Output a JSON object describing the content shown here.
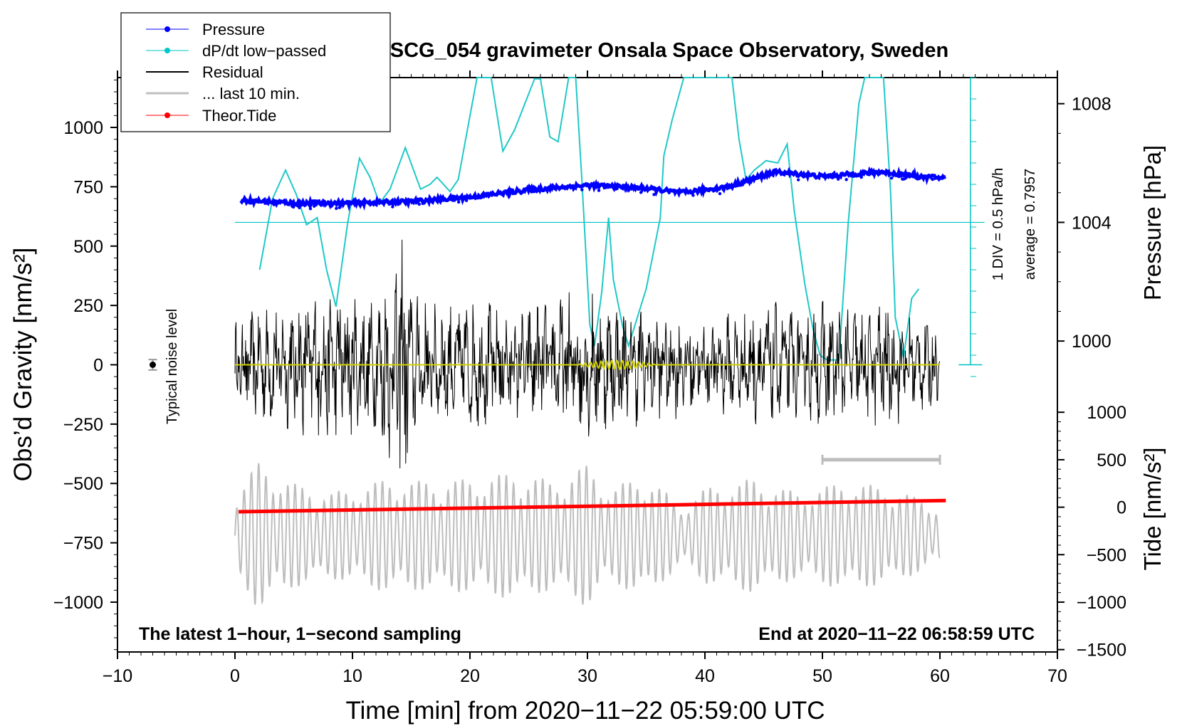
{
  "chart_data": {
    "type": "line",
    "title": "SCG_054 gravimeter Onsala Space Observatory, Sweden",
    "xlabel": "Time [min] from 2020−11−22 05:59:00 UTC",
    "ylabel_left": "Obs’d Gravity [nm/s²]",
    "ylabel_right_pressure": "Pressure [hPa]",
    "ylabel_right_tide": "Tide [nm/s²]",
    "xlim": [
      -10,
      70
    ],
    "ylim": [
      -1210,
      1210
    ],
    "x_ticks": [
      -10,
      0,
      10,
      20,
      30,
      40,
      50,
      60,
      70
    ],
    "x_tick_labels": [
      "−10",
      "0",
      "10",
      "20",
      "30",
      "40",
      "50",
      "60",
      "70"
    ],
    "y_ticks": [
      1000,
      750,
      500,
      250,
      0,
      -250,
      -500,
      -750,
      -1000
    ],
    "y_tick_labels": [
      "1000",
      "750",
      "500",
      "250",
      "0",
      "−250",
      "−500",
      "−750",
      "−1000"
    ],
    "pressure_axis": {
      "ticks": [
        1008,
        1004,
        1000
      ],
      "tick_labels": [
        "1008",
        "1004",
        "1000"
      ],
      "gravity_at_1004": 600,
      "gravity_per_hpa": 125
    },
    "tide_axis": {
      "ticks": [
        1000,
        500,
        0,
        -500,
        -1000,
        -1500
      ],
      "tick_labels": [
        "1000",
        "500",
        "0",
        "−500",
        "−1000",
        "−1500"
      ],
      "gravity_at_zero": -600,
      "gravity_per_unit": 0.4
    },
    "legend": {
      "position": "top-left",
      "entries": [
        {
          "label": "Pressure",
          "color": "#0000ff",
          "marker": "dot"
        },
        {
          "label": "dP/dt low−passed",
          "color": "#00c8c8",
          "marker": "dot"
        },
        {
          "label": "Residual",
          "color": "#000000",
          "marker": "line"
        },
        {
          "label": "... last 10 min.",
          "color": "#c0c0c0",
          "marker": "line"
        },
        {
          "label": "Theor.Tide",
          "color": "#ff0000",
          "marker": "dot"
        }
      ]
    },
    "annotations": {
      "noise_label": "Typical noise level",
      "noise_point": {
        "x": -7,
        "y": 0,
        "err": 22
      },
      "div_label": "1 DIV = 0.5 hPa/h",
      "avg_label": "average = 0.7957",
      "bottom_left": "The latest 1−hour, 1−second sampling",
      "bottom_right": "End at 2020−11−22 06:58:59 UTC",
      "last10_range": [
        50,
        60
      ],
      "last10_y": -400
    },
    "series": [
      {
        "name": "Pressure",
        "color": "#0000ff",
        "y_axis": "pressure_hpa",
        "points": [
          [
            0.5,
            1004.75
          ],
          [
            5,
            1004.65
          ],
          [
            10,
            1004.65
          ],
          [
            15,
            1004.7
          ],
          [
            20,
            1004.85
          ],
          [
            25,
            1005.1
          ],
          [
            30,
            1005.25
          ],
          [
            35,
            1005.15
          ],
          [
            38,
            1005.0
          ],
          [
            42,
            1005.2
          ],
          [
            46,
            1005.7
          ],
          [
            50,
            1005.55
          ],
          [
            55,
            1005.7
          ],
          [
            58,
            1005.55
          ],
          [
            60.5,
            1005.5
          ]
        ]
      },
      {
        "name": "dP/dt low-passed",
        "color": "#00c8c8",
        "y_axis": "gravity",
        "baseline": 600,
        "points": [
          [
            2.1,
            400
          ],
          [
            3.2,
            700
          ],
          [
            4.3,
            820
          ],
          [
            5.2,
            720
          ],
          [
            6.1,
            590
          ],
          [
            7,
            620
          ],
          [
            7.8,
            400
          ],
          [
            8.6,
            245
          ],
          [
            9.6,
            600
          ],
          [
            10.6,
            870
          ],
          [
            11.5,
            790
          ],
          [
            12.3,
            680
          ],
          [
            13.2,
            740
          ],
          [
            14.5,
            915
          ],
          [
            15.8,
            740
          ],
          [
            16.6,
            760
          ],
          [
            17.2,
            790
          ],
          [
            18.3,
            730
          ],
          [
            19,
            780
          ],
          [
            20.6,
            1210
          ],
          [
            21.8,
            1210
          ],
          [
            22.8,
            900
          ],
          [
            23.8,
            990
          ],
          [
            25.5,
            1205
          ],
          [
            26,
            1205
          ],
          [
            26.8,
            960
          ],
          [
            27.5,
            940
          ],
          [
            28.4,
            1210
          ],
          [
            29,
            1210
          ],
          [
            29.5,
            800
          ],
          [
            30.2,
            170
          ],
          [
            30.6,
            80
          ],
          [
            31.2,
            300
          ],
          [
            31.8,
            620
          ],
          [
            32.2,
            360
          ],
          [
            33,
            160
          ],
          [
            33.5,
            80
          ],
          [
            35,
            320
          ],
          [
            36.2,
            620
          ],
          [
            36.5,
            880
          ],
          [
            37.2,
            1030
          ],
          [
            38.2,
            1210
          ],
          [
            42.3,
            1210
          ],
          [
            42.9,
            950
          ],
          [
            43.5,
            780
          ],
          [
            44.2,
            820
          ],
          [
            45.2,
            860
          ],
          [
            46.2,
            850
          ],
          [
            47,
            930
          ],
          [
            47.6,
            650
          ],
          [
            48.5,
            340
          ],
          [
            49.2,
            150
          ],
          [
            49.8,
            40
          ],
          [
            50.4,
            20
          ],
          [
            51.4,
            20
          ],
          [
            52.2,
            600
          ],
          [
            53.1,
            1100
          ],
          [
            53.6,
            1210
          ],
          [
            55.2,
            1210
          ],
          [
            55.8,
            730
          ],
          [
            56.2,
            200
          ],
          [
            56.9,
            30
          ],
          [
            57.6,
            280
          ],
          [
            58.2,
            320
          ],
          [
            58.3,
            290
          ]
        ]
      },
      {
        "name": "Residual",
        "color": "#000000",
        "y_axis": "gravity",
        "amplitude_envelope": [
          [
            0,
            160
          ],
          [
            3,
            230
          ],
          [
            5,
            240
          ],
          [
            8,
            300
          ],
          [
            10,
            270
          ],
          [
            12,
            240
          ],
          [
            13,
            420
          ],
          [
            14.2,
            520
          ],
          [
            15,
            290
          ],
          [
            17,
            230
          ],
          [
            20,
            250
          ],
          [
            24,
            210
          ],
          [
            27,
            240
          ],
          [
            30,
            280
          ],
          [
            33,
            230
          ],
          [
            36,
            210
          ],
          [
            40,
            170
          ],
          [
            43,
            200
          ],
          [
            45,
            240
          ],
          [
            48,
            200
          ],
          [
            50,
            240
          ],
          [
            52,
            210
          ],
          [
            55,
            240
          ],
          [
            57,
            200
          ],
          [
            60,
            150
          ]
        ]
      },
      {
        "name": "... last 10 min.",
        "color": "#c0c0c0",
        "y_axis": "gravity",
        "baseline": -720,
        "amplitude_envelope": [
          [
            0,
            180
          ],
          [
            2,
            310
          ],
          [
            5,
            220
          ],
          [
            8,
            180
          ],
          [
            10,
            200
          ],
          [
            13,
            240
          ],
          [
            16,
            230
          ],
          [
            20,
            240
          ],
          [
            24,
            270
          ],
          [
            27,
            230
          ],
          [
            30,
            300
          ],
          [
            32,
            200
          ],
          [
            35,
            260
          ],
          [
            38,
            120
          ],
          [
            40,
            200
          ],
          [
            44,
            240
          ],
          [
            48,
            180
          ],
          [
            52,
            230
          ],
          [
            56,
            200
          ],
          [
            60,
            120
          ]
        ]
      },
      {
        "name": "Theor.Tide",
        "color": "#ff0000",
        "y_axis": "tide",
        "points": [
          [
            0.3,
            -48
          ],
          [
            20,
            -10
          ],
          [
            40,
            30
          ],
          [
            55,
            60
          ],
          [
            60.5,
            70
          ]
        ]
      },
      {
        "name": "Residual low-pass",
        "color": "#c8c800",
        "y_axis": "gravity",
        "points": [
          [
            0,
            0
          ],
          [
            30,
            0
          ],
          [
            60,
            0
          ]
        ],
        "wiggle_zone": [
          29,
          36
        ]
      }
    ]
  }
}
